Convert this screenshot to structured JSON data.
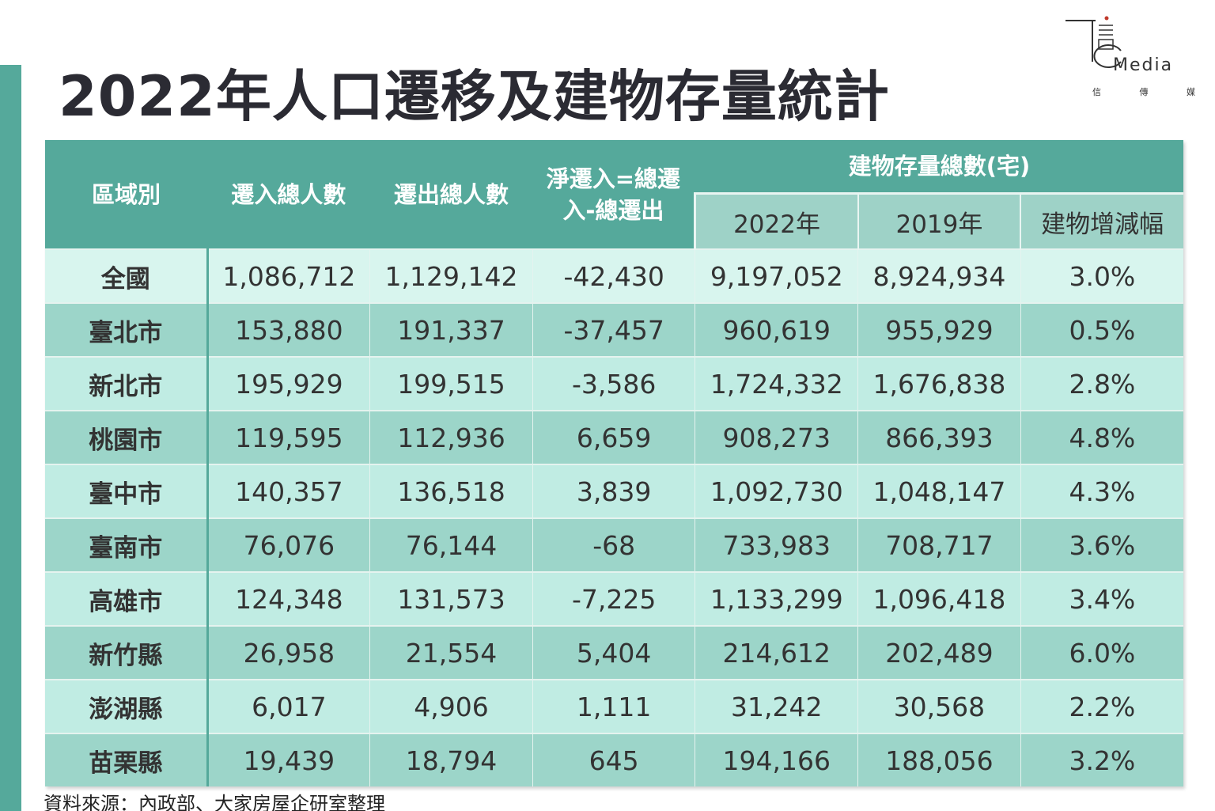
{
  "title": "2022年人口遷移及建物存量統計",
  "logo": {
    "word": "Media",
    "sub": [
      "信",
      "傳",
      "媒"
    ]
  },
  "table": {
    "headers": {
      "region": "區域別",
      "inflow": "遷入總人數",
      "outflow": "遷出總人數",
      "net": "淨遷入=總遷入-總遷出",
      "stock_group": "建物存量總數(宅)",
      "stock_2022": "2022年",
      "stock_2019": "2019年",
      "change": "建物增減幅"
    },
    "rows": [
      {
        "region": "全國",
        "inflow": "1,086,712",
        "outflow": "1,129,142",
        "net": "-42,430",
        "stock_2022": "9,197,052",
        "stock_2019": "8,924,934",
        "change": "3.0%"
      },
      {
        "region": "臺北市",
        "inflow": "153,880",
        "outflow": "191,337",
        "net": "-37,457",
        "stock_2022": "960,619",
        "stock_2019": "955,929",
        "change": "0.5%"
      },
      {
        "region": "新北市",
        "inflow": "195,929",
        "outflow": "199,515",
        "net": "-3,586",
        "stock_2022": "1,724,332",
        "stock_2019": "1,676,838",
        "change": "2.8%"
      },
      {
        "region": "桃園市",
        "inflow": "119,595",
        "outflow": "112,936",
        "net": "6,659",
        "stock_2022": "908,273",
        "stock_2019": "866,393",
        "change": "4.8%"
      },
      {
        "region": "臺中市",
        "inflow": "140,357",
        "outflow": "136,518",
        "net": "3,839",
        "stock_2022": "1,092,730",
        "stock_2019": "1,048,147",
        "change": "4.3%"
      },
      {
        "region": "臺南市",
        "inflow": "76,076",
        "outflow": "76,144",
        "net": "-68",
        "stock_2022": "733,983",
        "stock_2019": "708,717",
        "change": "3.6%"
      },
      {
        "region": "高雄市",
        "inflow": "124,348",
        "outflow": "131,573",
        "net": "-7,225",
        "stock_2022": "1,133,299",
        "stock_2019": "1,096,418",
        "change": "3.4%"
      },
      {
        "region": "新竹縣",
        "inflow": "26,958",
        "outflow": "21,554",
        "net": "5,404",
        "stock_2022": "214,612",
        "stock_2019": "202,489",
        "change": "6.0%"
      },
      {
        "region": "澎湖縣",
        "inflow": "6,017",
        "outflow": "4,906",
        "net": "1,111",
        "stock_2022": "31,242",
        "stock_2019": "30,568",
        "change": "2.2%"
      },
      {
        "region": "苗栗縣",
        "inflow": "19,439",
        "outflow": "18,794",
        "net": "645",
        "stock_2022": "194,166",
        "stock_2019": "188,056",
        "change": "3.2%"
      }
    ]
  },
  "source": "資料來源：內政部、大家房屋企研室整理",
  "colors": {
    "accent": "#55a99b",
    "sub_header": "#9ed2c7",
    "row_light": "#c0ece3",
    "row_dark": "#9cd5c9"
  }
}
